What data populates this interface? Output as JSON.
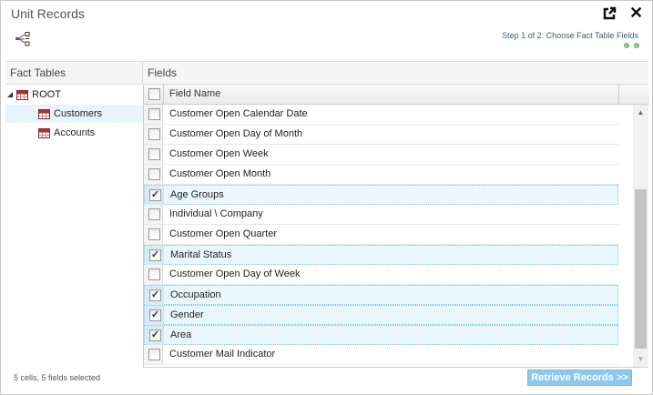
{
  "window": {
    "title": "Unit Records",
    "step": "Step 1 of 2: Choose Fact Table Fields",
    "step_total": 2,
    "step_current": 1
  },
  "icons": {
    "popout": "external-link-icon",
    "close": "close-icon",
    "toolbar": "hierarchy-icon"
  },
  "left": {
    "header": "Fact Tables",
    "tree": [
      {
        "label": "ROOT",
        "level": 0,
        "expanded": true
      },
      {
        "label": "Customers",
        "level": 1,
        "selected": true
      },
      {
        "label": "Accounts",
        "level": 1
      }
    ]
  },
  "grid": {
    "header": "Fields",
    "column": "Field Name",
    "scroll_fraction": 0.6,
    "rows": [
      {
        "label": "Customer Open Calendar Date",
        "checked": false
      },
      {
        "label": "Customer Open Day of Month",
        "checked": false
      },
      {
        "label": "Customer Open Week",
        "checked": false
      },
      {
        "label": "Customer Open Month",
        "checked": false
      },
      {
        "label": "Age Groups",
        "checked": true
      },
      {
        "label": "Individual \\ Company",
        "checked": false
      },
      {
        "label": "Customer Open Quarter",
        "checked": false
      },
      {
        "label": "Marital Status",
        "checked": true
      },
      {
        "label": "Customer Open Day of Week",
        "checked": false
      },
      {
        "label": "Occupation",
        "checked": true
      },
      {
        "label": "Gender",
        "checked": true
      },
      {
        "label": "Area",
        "checked": true
      },
      {
        "label": "Customer Mail Indicator",
        "checked": false
      }
    ]
  },
  "footer": {
    "status": "5 cells, 5 fields selected",
    "button": "Retrieve Records >>"
  },
  "colors": {
    "accent": "#8cc8f0",
    "selected_row": "#e9f7fd",
    "step_dot": "#8ccf8c"
  }
}
